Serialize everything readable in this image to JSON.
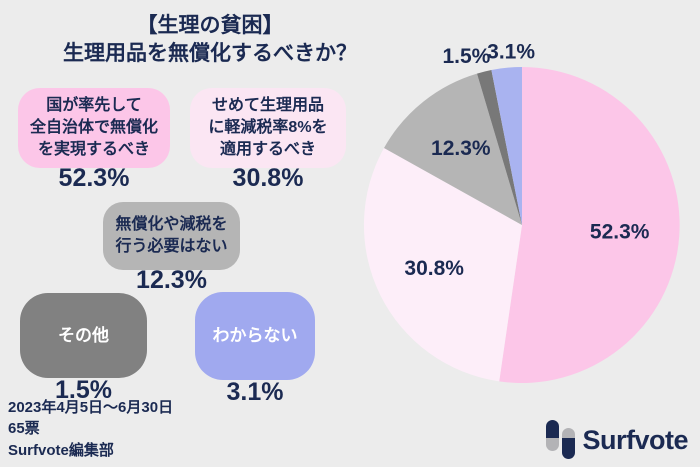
{
  "page": {
    "background": "#ececec",
    "text_color": "#1b2a52"
  },
  "title": {
    "line1": "【生理の貧困】",
    "line2": "生理用品を無償化するべきか？"
  },
  "options": [
    {
      "lines": [
        "国が率先して",
        "全自治体で無償化",
        "を実現するべき"
      ],
      "pct": "52.3%",
      "color": "#fcc6e8",
      "text_color": "#1b2a52"
    },
    {
      "lines": [
        "せめて生理用品",
        "に軽減税率8%を",
        "適用するべき"
      ],
      "pct": "30.8%",
      "color": "#fbe6f3",
      "text_color": "#1b2a52"
    },
    {
      "lines": [
        "無償化や減税を",
        "行う必要はない"
      ],
      "pct": "12.3%",
      "color": "#b5b5b5",
      "text_color": "#1b2a52"
    },
    {
      "lines": [
        "その他"
      ],
      "pct": "1.5%",
      "color": "#818181",
      "text_color": "#ffffff"
    },
    {
      "lines": [
        "わからない"
      ],
      "pct": "3.1%",
      "color": "#a0a9ef",
      "text_color": "#ffffff"
    }
  ],
  "footer": {
    "period": "2023年4月5日〜6月30日",
    "votes": "65票",
    "credit": "Surfvote編集部"
  },
  "logo": {
    "brand": "Surfvote"
  },
  "chart_data": {
    "type": "pie",
    "title": "【生理の貧困】生理用品を無償化するべきか？",
    "categories": [
      "国が率先して全自治体で無償化を実現するべき",
      "せめて生理用品に軽減税率8%を適用するべき",
      "無償化や減税を行う必要はない",
      "その他",
      "わからない"
    ],
    "values": [
      52.3,
      30.8,
      12.3,
      1.5,
      3.1
    ],
    "labels": [
      "52.3%",
      "30.8%",
      "12.3%",
      "1.5%",
      "3.1%"
    ],
    "colors": [
      "#fcc6e8",
      "#fdeef9",
      "#b5b5b5",
      "#787878",
      "#a9b3f0"
    ],
    "start_angle_deg": 0,
    "direction": "clockwise",
    "label_color": "#1b2a52",
    "survey_period": "2023年4月5日〜6月30日",
    "total_votes": "65票",
    "source": "Surfvote編集部"
  }
}
